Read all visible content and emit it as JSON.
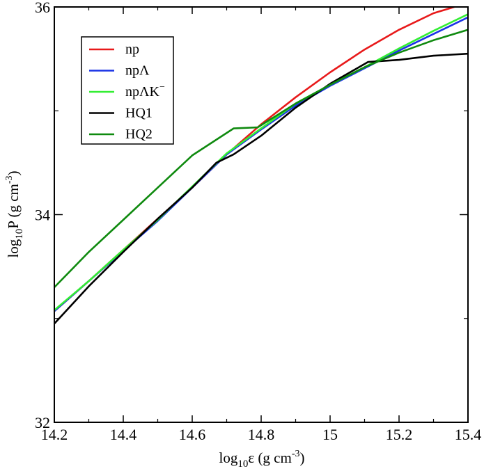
{
  "chart_data": {
    "type": "line",
    "title": "",
    "xlabel": {
      "base": "log",
      "sub": "10",
      "main": "ε (g cm",
      "sup": "-3",
      "tail": ")"
    },
    "ylabel": {
      "base": "log",
      "sub": "10",
      "main": "P (g cm",
      "sup": "-3",
      "tail": ")"
    },
    "xlim": [
      14.2,
      15.4
    ],
    "ylim": [
      32,
      36
    ],
    "xticks": [
      {
        "value": 14.2,
        "label": "14.2"
      },
      {
        "value": 14.4,
        "label": "14.4"
      },
      {
        "value": 14.6,
        "label": "14.6"
      },
      {
        "value": 14.8,
        "label": "14.8"
      },
      {
        "value": 15.0,
        "label": "15"
      },
      {
        "value": 15.2,
        "label": "15.2"
      },
      {
        "value": 15.4,
        "label": "15.4"
      }
    ],
    "xminor": [
      14.3,
      14.5,
      14.7,
      14.9,
      15.1,
      15.3
    ],
    "yticks": [
      {
        "value": 32,
        "label": "32"
      },
      {
        "value": 34,
        "label": "34"
      },
      {
        "value": 36,
        "label": "36"
      }
    ],
    "yminor": [
      33,
      35
    ],
    "grid": false,
    "legend_position": "top-left",
    "series": [
      {
        "name": "np",
        "label_main": "np",
        "label_sup": "",
        "color": "#e8191a",
        "x": [
          14.2,
          14.3,
          14.4,
          14.5,
          14.6,
          14.7,
          14.8,
          14.9,
          15.0,
          15.1,
          15.2,
          15.3,
          15.36
        ],
        "y": [
          33.07,
          33.36,
          33.66,
          33.96,
          34.26,
          34.58,
          34.87,
          35.13,
          35.37,
          35.59,
          35.78,
          35.94,
          36.0
        ]
      },
      {
        "name": "npΛ",
        "label_main": "npΛ",
        "label_sup": "",
        "color": "#1a33e6",
        "x": [
          14.2,
          14.3,
          14.4,
          14.5,
          14.6,
          14.7,
          14.8,
          14.9,
          15.0,
          15.1,
          15.2,
          15.3,
          15.4
        ],
        "y": [
          33.07,
          33.36,
          33.65,
          33.94,
          34.26,
          34.58,
          34.82,
          35.05,
          35.24,
          35.41,
          35.58,
          35.74,
          35.9
        ]
      },
      {
        "name": "npΛK⁻",
        "label_main": "npΛK",
        "label_sup": "−",
        "color": "#33ee33",
        "x": [
          14.2,
          14.3,
          14.4,
          14.5,
          14.6,
          14.7,
          14.8,
          14.9,
          15.0,
          15.1,
          15.2,
          15.3,
          15.4
        ],
        "y": [
          33.08,
          33.36,
          33.66,
          33.95,
          34.27,
          34.59,
          34.83,
          35.07,
          35.25,
          35.42,
          35.6,
          35.77,
          35.93
        ]
      },
      {
        "name": "HQ1",
        "label_main": "HQ1",
        "label_sup": "",
        "color": "#000000",
        "x": [
          14.2,
          14.3,
          14.4,
          14.5,
          14.6,
          14.67,
          14.72,
          14.8,
          14.9,
          15.0,
          15.11,
          15.2,
          15.3,
          15.4
        ],
        "y": [
          32.95,
          33.31,
          33.64,
          33.96,
          34.26,
          34.5,
          34.58,
          34.76,
          35.03,
          35.26,
          35.47,
          35.49,
          35.53,
          35.55
        ]
      },
      {
        "name": "HQ2",
        "label_main": "HQ2",
        "label_sup": "",
        "color": "#0f8a0f",
        "x": [
          14.2,
          14.3,
          14.4,
          14.5,
          14.6,
          14.72,
          14.79,
          14.9,
          15.0,
          15.1,
          15.2,
          15.3,
          15.4
        ],
        "y": [
          33.3,
          33.64,
          33.95,
          34.26,
          34.57,
          34.83,
          34.84,
          35.07,
          35.25,
          35.42,
          35.56,
          35.68,
          35.78
        ]
      }
    ]
  }
}
